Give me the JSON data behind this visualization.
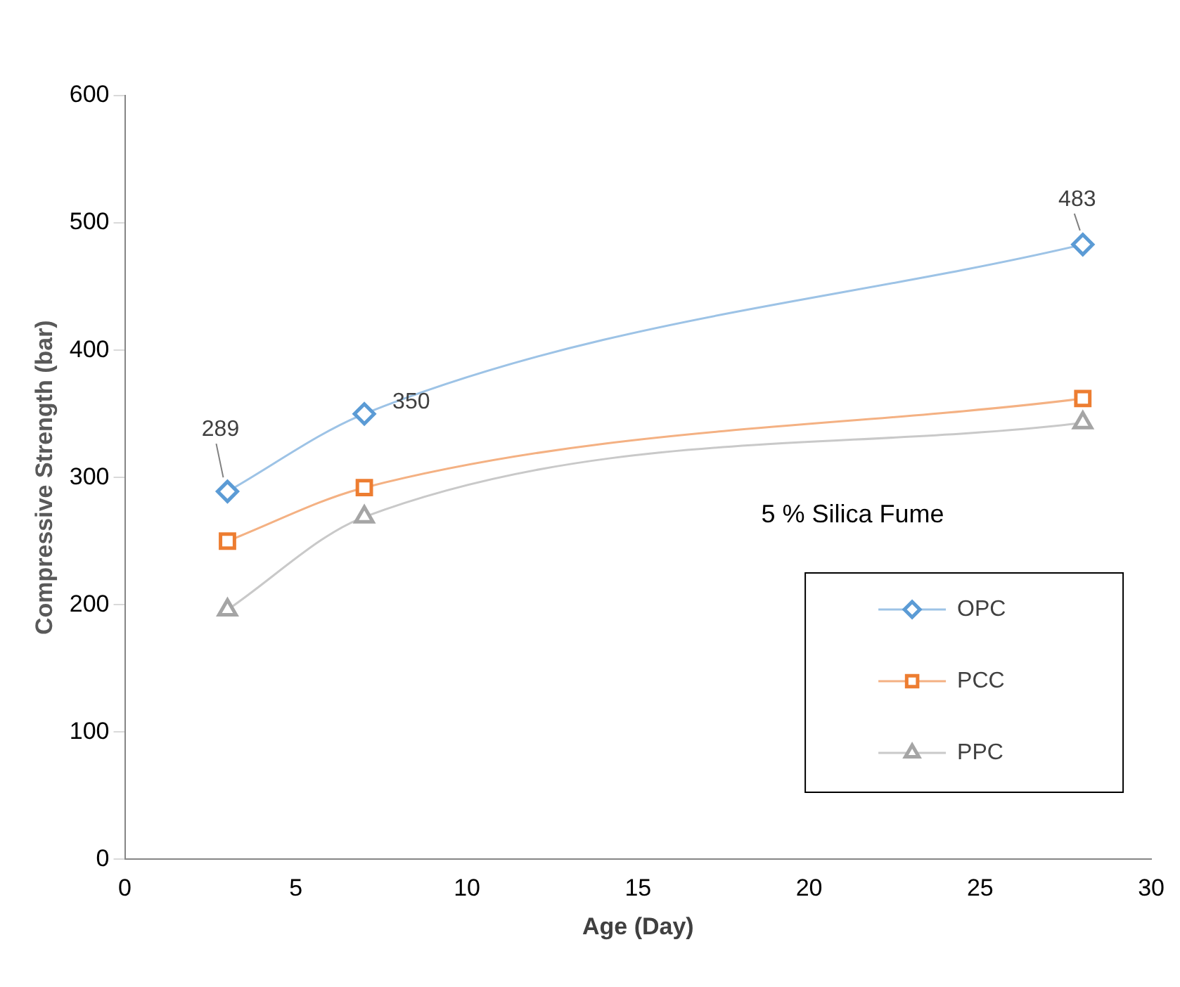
{
  "chart_data": {
    "type": "line",
    "xlabel": "Age (Day)",
    "ylabel": "Compressive Strength (bar)",
    "x": [
      3,
      7,
      28
    ],
    "series": [
      {
        "name": "OPC",
        "color": "#5b9bd5",
        "values": [
          289,
          350,
          483
        ],
        "marker": "diamond",
        "value_labels": [
          "289",
          "350",
          "483"
        ]
      },
      {
        "name": "PCC",
        "color": "#ed7d31",
        "values": [
          250,
          292,
          362
        ],
        "marker": "square"
      },
      {
        "name": "PPC",
        "color": "#a5a5a5",
        "values": [
          196,
          269,
          343
        ],
        "marker": "triangle"
      }
    ],
    "xlim": [
      0,
      30
    ],
    "xticks": [
      0,
      5,
      10,
      15,
      20,
      25,
      30
    ],
    "ylim": [
      0,
      600
    ],
    "yticks": [
      0,
      100,
      200,
      300,
      400,
      500,
      600
    ],
    "annotations": [
      "5 % Silica Fume"
    ],
    "grid": false,
    "legend": "right"
  }
}
